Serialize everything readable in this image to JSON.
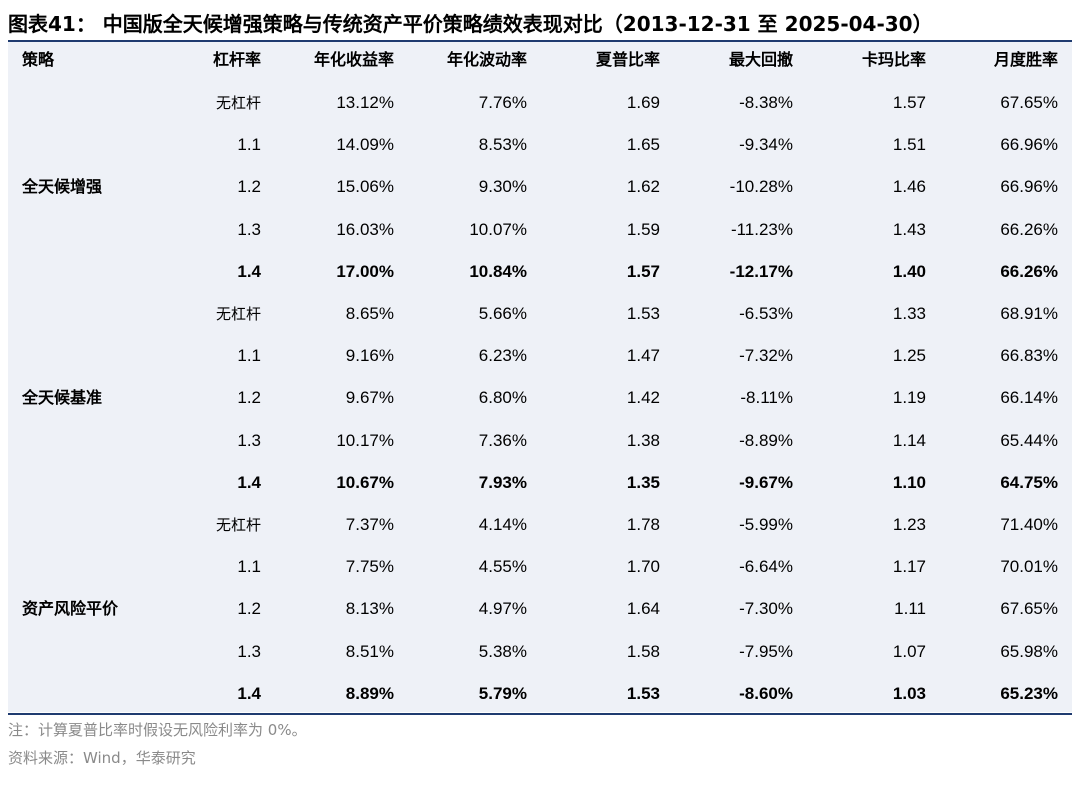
{
  "title": "图表41： 中国版全天候增强策略与传统资产平价策略绩效表现对比（2013-12-31 至 2025-04-30）",
  "table": {
    "headers": [
      "策略",
      "杠杆率",
      "年化收益率",
      "年化波动率",
      "夏普比率",
      "最大回撤",
      "卡玛比率",
      "月度胜率"
    ],
    "groups": [
      {
        "name": "全天候增强",
        "rows": [
          {
            "leverage": "无杠杆",
            "return": "13.12%",
            "vol": "7.76%",
            "sharpe": "1.69",
            "mdd": "-8.38%",
            "calmar": "1.57",
            "win": "67.65%"
          },
          {
            "leverage": "1.1",
            "return": "14.09%",
            "vol": "8.53%",
            "sharpe": "1.65",
            "mdd": "-9.34%",
            "calmar": "1.51",
            "win": "66.96%"
          },
          {
            "leverage": "1.2",
            "return": "15.06%",
            "vol": "9.30%",
            "sharpe": "1.62",
            "mdd": "-10.28%",
            "calmar": "1.46",
            "win": "66.96%"
          },
          {
            "leverage": "1.3",
            "return": "16.03%",
            "vol": "10.07%",
            "sharpe": "1.59",
            "mdd": "-11.23%",
            "calmar": "1.43",
            "win": "66.26%"
          },
          {
            "leverage": "1.4",
            "return": "17.00%",
            "vol": "10.84%",
            "sharpe": "1.57",
            "mdd": "-12.17%",
            "calmar": "1.40",
            "win": "66.26%"
          }
        ]
      },
      {
        "name": "全天候基准",
        "rows": [
          {
            "leverage": "无杠杆",
            "return": "8.65%",
            "vol": "5.66%",
            "sharpe": "1.53",
            "mdd": "-6.53%",
            "calmar": "1.33",
            "win": "68.91%"
          },
          {
            "leverage": "1.1",
            "return": "9.16%",
            "vol": "6.23%",
            "sharpe": "1.47",
            "mdd": "-7.32%",
            "calmar": "1.25",
            "win": "66.83%"
          },
          {
            "leverage": "1.2",
            "return": "9.67%",
            "vol": "6.80%",
            "sharpe": "1.42",
            "mdd": "-8.11%",
            "calmar": "1.19",
            "win": "66.14%"
          },
          {
            "leverage": "1.3",
            "return": "10.17%",
            "vol": "7.36%",
            "sharpe": "1.38",
            "mdd": "-8.89%",
            "calmar": "1.14",
            "win": "65.44%"
          },
          {
            "leverage": "1.4",
            "return": "10.67%",
            "vol": "7.93%",
            "sharpe": "1.35",
            "mdd": "-9.67%",
            "calmar": "1.10",
            "win": "64.75%"
          }
        ]
      },
      {
        "name": "资产风险平价",
        "rows": [
          {
            "leverage": "无杠杆",
            "return": "7.37%",
            "vol": "4.14%",
            "sharpe": "1.78",
            "mdd": "-5.99%",
            "calmar": "1.23",
            "win": "71.40%"
          },
          {
            "leverage": "1.1",
            "return": "7.75%",
            "vol": "4.55%",
            "sharpe": "1.70",
            "mdd": "-6.64%",
            "calmar": "1.17",
            "win": "70.01%"
          },
          {
            "leverage": "1.2",
            "return": "8.13%",
            "vol": "4.97%",
            "sharpe": "1.64",
            "mdd": "-7.30%",
            "calmar": "1.11",
            "win": "67.65%"
          },
          {
            "leverage": "1.3",
            "return": "8.51%",
            "vol": "5.38%",
            "sharpe": "1.58",
            "mdd": "-7.95%",
            "calmar": "1.07",
            "win": "65.98%"
          },
          {
            "leverage": "1.4",
            "return": "8.89%",
            "vol": "5.79%",
            "sharpe": "1.53",
            "mdd": "-8.60%",
            "calmar": "1.03",
            "win": "65.23%"
          }
        ]
      }
    ]
  },
  "notes": {
    "note": "注：计算夏普比率时假设无风险利率为 0%。",
    "source": "资料来源：Wind，华泰研究"
  },
  "colors": {
    "rule": "#1f3b70",
    "table_background": "#eef1f7",
    "note_text": "#8a8a8a"
  }
}
